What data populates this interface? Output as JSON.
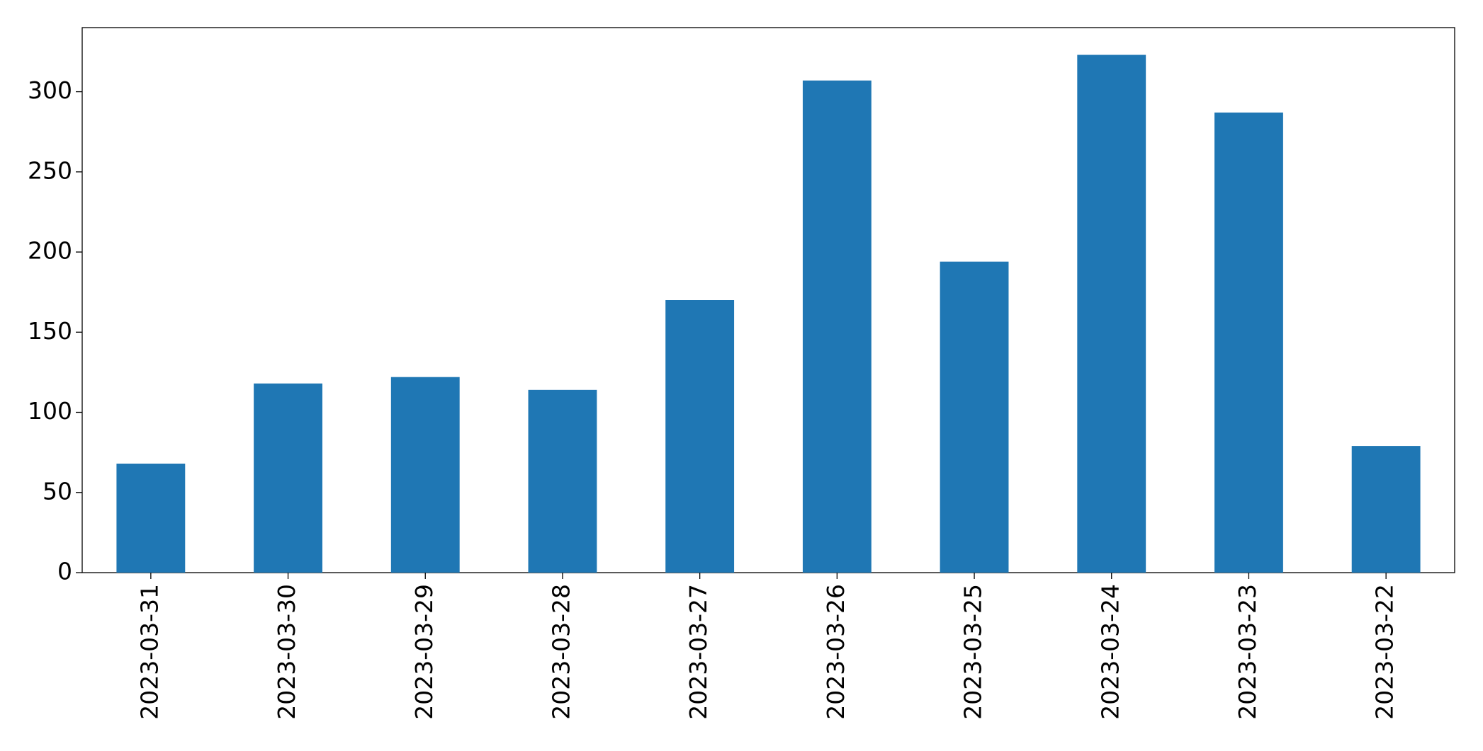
{
  "chart_data": {
    "type": "bar",
    "categories": [
      "2023-03-31",
      "2023-03-30",
      "2023-03-29",
      "2023-03-28",
      "2023-03-27",
      "2023-03-26",
      "2023-03-25",
      "2023-03-24",
      "2023-03-23",
      "2023-03-22"
    ],
    "values": [
      68,
      118,
      122,
      114,
      170,
      307,
      194,
      323,
      287,
      79
    ],
    "color": "#1f77b4",
    "ylim": [
      0,
      340
    ],
    "yticks": [
      0,
      50,
      100,
      150,
      200,
      250,
      300
    ],
    "grid": false
  }
}
